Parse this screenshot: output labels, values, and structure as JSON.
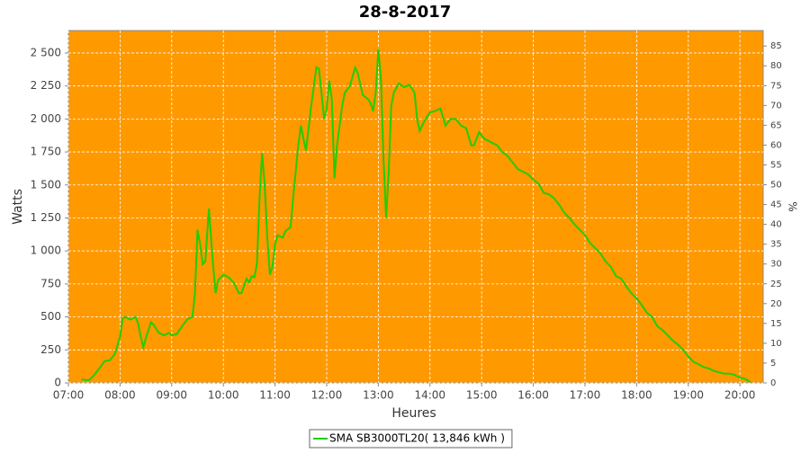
{
  "chart_data": {
    "type": "line",
    "title": "28-8-2017",
    "x_label": "Heures",
    "y_label": "Watts",
    "y2_label": "%",
    "x": [
      7.25,
      7.4,
      7.5,
      7.6,
      7.7,
      7.8,
      7.9,
      8.0,
      8.05,
      8.1,
      8.2,
      8.3,
      8.35,
      8.4,
      8.45,
      8.5,
      8.6,
      8.65,
      8.75,
      8.85,
      8.95,
      9.0,
      9.1,
      9.2,
      9.3,
      9.4,
      9.45,
      9.5,
      9.55,
      9.6,
      9.65,
      9.72,
      9.8,
      9.85,
      9.9,
      10.0,
      10.1,
      10.2,
      10.3,
      10.35,
      10.45,
      10.5,
      10.55,
      10.6,
      10.65,
      10.7,
      10.75,
      10.8,
      10.85,
      10.9,
      10.95,
      11.0,
      11.05,
      11.15,
      11.2,
      11.3,
      11.35,
      11.45,
      11.5,
      11.55,
      11.6,
      11.7,
      11.8,
      11.85,
      11.9,
      11.95,
      12.0,
      12.05,
      12.1,
      12.15,
      12.2,
      12.3,
      12.35,
      12.45,
      12.55,
      12.6,
      12.7,
      12.8,
      12.85,
      12.9,
      12.95,
      13.0,
      13.05,
      13.1,
      13.15,
      13.2,
      13.25,
      13.3,
      13.4,
      13.5,
      13.6,
      13.7,
      13.75,
      13.8,
      13.9,
      14.0,
      14.1,
      14.2,
      14.3,
      14.4,
      14.5,
      14.6,
      14.7,
      14.8,
      14.85,
      14.95,
      15.05,
      15.2,
      15.3,
      15.4,
      15.5,
      15.6,
      15.7,
      15.8,
      15.9,
      16.0,
      16.1,
      16.2,
      16.3,
      16.4,
      16.5,
      16.6,
      16.7,
      16.8,
      16.9,
      17.0,
      17.1,
      17.2,
      17.3,
      17.4,
      17.5,
      17.6,
      17.7,
      17.8,
      17.9,
      18.0,
      18.1,
      18.2,
      18.3,
      18.4,
      18.5,
      18.6,
      18.7,
      18.8,
      18.9,
      19.0,
      19.1,
      19.2,
      19.3,
      19.4,
      19.5,
      19.6,
      19.7,
      19.8,
      19.9,
      20.0,
      20.1,
      20.15,
      20.2
    ],
    "series": [
      {
        "name": "SMA SB3000TL20( 13,846 kWh )",
        "color": "#22cc00",
        "values": [
          25,
          20,
          60,
          110,
          165,
          170,
          220,
          350,
          490,
          500,
          480,
          500,
          450,
          350,
          270,
          340,
          460,
          440,
          380,
          360,
          380,
          360,
          370,
          430,
          480,
          500,
          680,
          1160,
          1050,
          900,
          920,
          1320,
          900,
          680,
          780,
          820,
          800,
          760,
          680,
          680,
          790,
          760,
          810,
          800,
          900,
          1400,
          1740,
          1500,
          1100,
          820,
          880,
          1050,
          1120,
          1100,
          1150,
          1180,
          1400,
          1800,
          1950,
          1850,
          1760,
          2100,
          2390,
          2380,
          2200,
          2000,
          2080,
          2290,
          2150,
          1550,
          1800,
          2100,
          2200,
          2250,
          2390,
          2350,
          2180,
          2150,
          2120,
          2060,
          2200,
          2530,
          2300,
          1700,
          1250,
          1600,
          2100,
          2200,
          2270,
          2240,
          2260,
          2200,
          2000,
          1910,
          1990,
          2050,
          2060,
          2080,
          1950,
          2000,
          2000,
          1950,
          1930,
          1800,
          1800,
          1900,
          1850,
          1820,
          1800,
          1750,
          1720,
          1670,
          1620,
          1600,
          1580,
          1540,
          1510,
          1440,
          1430,
          1400,
          1350,
          1290,
          1250,
          1200,
          1160,
          1120,
          1060,
          1020,
          980,
          920,
          880,
          810,
          790,
          730,
          680,
          640,
          590,
          530,
          500,
          430,
          400,
          360,
          320,
          290,
          250,
          200,
          160,
          140,
          120,
          110,
          90,
          80,
          70,
          70,
          60,
          40,
          30,
          20,
          5
        ]
      }
    ],
    "xlim": [
      7,
      20.45
    ],
    "xticks": [
      {
        "value": 7,
        "label": "07:00"
      },
      {
        "value": 8,
        "label": "08:00"
      },
      {
        "value": 9,
        "label": "09:00"
      },
      {
        "value": 10,
        "label": "10:00"
      },
      {
        "value": 11,
        "label": "11:00"
      },
      {
        "value": 12,
        "label": "12:00"
      },
      {
        "value": 13,
        "label": "13:00"
      },
      {
        "value": 14,
        "label": "14:00"
      },
      {
        "value": 15,
        "label": "15:00"
      },
      {
        "value": 16,
        "label": "16:00"
      },
      {
        "value": 17,
        "label": "17:00"
      },
      {
        "value": 18,
        "label": "18:00"
      },
      {
        "value": 19,
        "label": "19:00"
      },
      {
        "value": 20,
        "label": "20:00"
      }
    ],
    "ylim": [
      0,
      2670
    ],
    "yticks": [
      0,
      250,
      500,
      750,
      {
        "value": 1000,
        "label": "1 000"
      },
      {
        "value": 1250,
        "label": "1 250"
      },
      {
        "value": 1500,
        "label": "1 500"
      },
      {
        "value": 1750,
        "label": "1 750"
      },
      {
        "value": 2000,
        "label": "2 000"
      },
      {
        "value": 2250,
        "label": "2 250"
      },
      {
        "value": 2500,
        "label": "2 500"
      }
    ],
    "y2lim": [
      0,
      88.9
    ],
    "y2ticks": [
      0,
      5,
      10,
      15,
      20,
      25,
      30,
      35,
      40,
      45,
      50,
      55,
      60,
      65,
      70,
      75,
      80,
      85
    ],
    "grid": true,
    "plot_background": "#ff9900"
  }
}
